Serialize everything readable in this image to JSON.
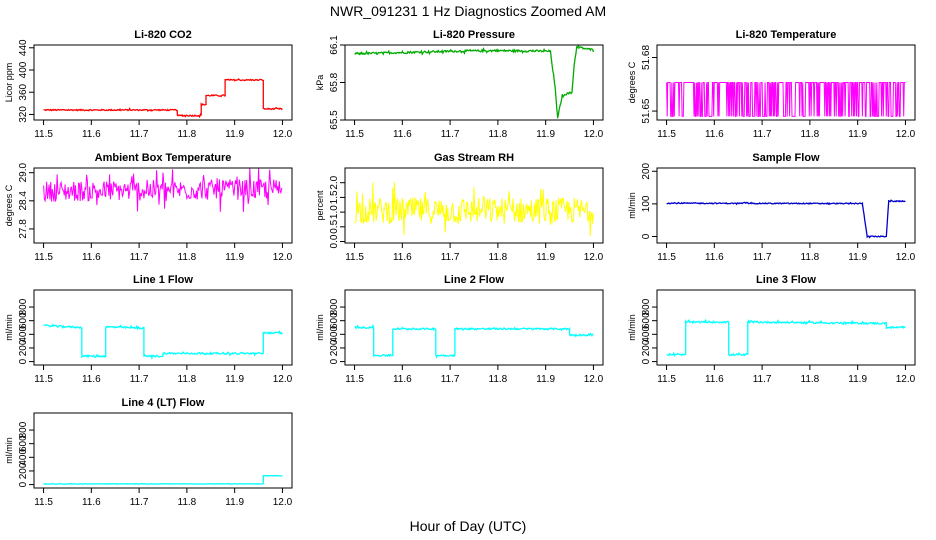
{
  "figure": {
    "title": "NWR_091231  1 Hz Diagnostics Zoomed AM",
    "xlabel": "Hour of Day (UTC)"
  },
  "chart_data": [
    {
      "type": "line",
      "title": "Li-820 CO2",
      "ylabel": "Licor ppm",
      "color": "#ff0000",
      "xlim": [
        11.48,
        12.02
      ],
      "ylim": [
        310,
        445
      ],
      "xticks": [
        "11.5",
        "11.6",
        "11.7",
        "11.8",
        "11.9",
        "12.0"
      ],
      "yticks": [
        "320",
        "360",
        "400",
        "440"
      ],
      "noise": 1.2,
      "series": [
        {
          "x": [
            11.5,
            11.78,
            11.78,
            11.83,
            11.83,
            11.84,
            11.84,
            11.88,
            11.88,
            11.96,
            11.96,
            12.0
          ],
          "values": [
            328,
            328,
            318,
            318,
            338,
            338,
            354,
            354,
            382,
            382,
            330,
            330
          ]
        }
      ]
    },
    {
      "type": "line",
      "title": "Li-820 Pressure",
      "ylabel": "kPa",
      "color": "#00aa00",
      "xlim": [
        11.48,
        12.02
      ],
      "ylim": [
        65.5,
        66.1
      ],
      "xticks": [
        "11.5",
        "11.6",
        "11.7",
        "11.8",
        "11.9",
        "12.0"
      ],
      "yticks": [
        "65.5",
        "65.8",
        "66.1"
      ],
      "noise": 0.008,
      "series": [
        {
          "x": [
            11.5,
            11.6,
            11.7,
            11.8,
            11.91,
            11.92,
            11.925,
            11.935,
            11.955,
            11.96,
            11.965,
            11.97,
            12.0
          ],
          "values": [
            66.03,
            66.04,
            66.05,
            66.055,
            66.05,
            65.75,
            65.52,
            65.7,
            65.72,
            65.95,
            66.08,
            66.08,
            66.06
          ]
        }
      ]
    },
    {
      "type": "line",
      "title": "Li-820 Temperature",
      "ylabel": "degrees C",
      "color": "#ff00ff",
      "xlim": [
        11.48,
        12.02
      ],
      "ylim": [
        51.645,
        51.687
      ],
      "xticks": [
        "11.5",
        "11.6",
        "11.7",
        "11.8",
        "11.9",
        "12.0"
      ],
      "yticks": [
        "51.65",
        "51.68"
      ],
      "noise": 0,
      "series": [
        {
          "x": [
            11.5,
            12.0
          ],
          "values": [
            51.666,
            51.666
          ]
        }
      ]
    },
    {
      "type": "line",
      "title": "Ambient Box Temperature",
      "ylabel": "degrees C",
      "color": "#ff00ff",
      "xlim": [
        11.48,
        12.02
      ],
      "ylim": [
        27.5,
        29.1
      ],
      "xticks": [
        "11.5",
        "11.6",
        "11.7",
        "11.8",
        "11.9",
        "12.0"
      ],
      "yticks": [
        "27.8",
        "28.4",
        "29.0"
      ],
      "noise": 0.22,
      "series": [
        {
          "x": [
            11.5,
            12.0
          ],
          "values": [
            28.6,
            28.65
          ]
        }
      ]
    },
    {
      "type": "line",
      "title": "Gas Stream RH",
      "ylabel": "percent",
      "color": "#ffff00",
      "xlim": [
        11.48,
        12.02
      ],
      "ylim": [
        -0.05,
        2.5
      ],
      "xticks": [
        "11.5",
        "11.6",
        "11.7",
        "11.8",
        "11.9",
        "12.0"
      ],
      "yticks": [
        "0.0",
        "0.5",
        "1.0",
        "1.5",
        "2.0"
      ],
      "noise": 0.45,
      "series": [
        {
          "x": [
            11.5,
            12.0
          ],
          "values": [
            1.05,
            1.05
          ]
        }
      ]
    },
    {
      "type": "line",
      "title": "Sample Flow",
      "ylabel": "ml/min",
      "color": "#0000cc",
      "xlim": [
        11.48,
        12.02
      ],
      "ylim": [
        -20,
        210
      ],
      "xticks": [
        "11.5",
        "11.6",
        "11.7",
        "11.8",
        "11.9",
        "12.0"
      ],
      "yticks": [
        "0",
        "100",
        "200"
      ],
      "noise": 1.5,
      "series": [
        {
          "x": [
            11.5,
            11.91,
            11.92,
            11.96,
            11.965,
            12.0
          ],
          "values": [
            102,
            101,
            0,
            0,
            108,
            108
          ]
        }
      ]
    },
    {
      "type": "line",
      "title": "Line 1 Flow",
      "ylabel": "ml/min",
      "color": "#00ffff",
      "xlim": [
        11.48,
        12.02
      ],
      "ylim": [
        -50,
        1050
      ],
      "xticks": [
        "11.5",
        "11.6",
        "11.7",
        "11.8",
        "11.9",
        "12.0"
      ],
      "yticks": [
        "0",
        "200",
        "400",
        "600",
        "800"
      ],
      "noise": 12,
      "series": [
        {
          "x": [
            11.5,
            11.58,
            11.58,
            11.63,
            11.63,
            11.71,
            11.71,
            11.75,
            11.75,
            11.96,
            11.96,
            12.0
          ],
          "values": [
            530,
            500,
            80,
            80,
            510,
            490,
            80,
            80,
            120,
            120,
            420,
            420
          ]
        }
      ]
    },
    {
      "type": "line",
      "title": "Line 2 Flow",
      "ylabel": "ml/min",
      "color": "#00ffff",
      "xlim": [
        11.48,
        12.02
      ],
      "ylim": [
        -50,
        1050
      ],
      "xticks": [
        "11.5",
        "11.6",
        "11.7",
        "11.8",
        "11.9",
        "12.0"
      ],
      "yticks": [
        "0",
        "200",
        "400",
        "600",
        "800"
      ],
      "noise": 12,
      "series": [
        {
          "x": [
            11.5,
            11.54,
            11.54,
            11.58,
            11.58,
            11.67,
            11.67,
            11.71,
            11.71,
            11.95,
            11.95,
            12.0
          ],
          "values": [
            500,
            500,
            90,
            90,
            480,
            480,
            90,
            90,
            480,
            480,
            390,
            390
          ]
        }
      ]
    },
    {
      "type": "line",
      "title": "Line 3 Flow",
      "ylabel": "ml/min",
      "color": "#00ffff",
      "xlim": [
        11.48,
        12.02
      ],
      "ylim": [
        -50,
        1050
      ],
      "xticks": [
        "11.5",
        "11.6",
        "11.7",
        "11.8",
        "11.9",
        "12.0"
      ],
      "yticks": [
        "0",
        "200",
        "400",
        "600",
        "800"
      ],
      "noise": 12,
      "series": [
        {
          "x": [
            11.5,
            11.54,
            11.54,
            11.63,
            11.63,
            11.67,
            11.67,
            11.96,
            11.96,
            12.0
          ],
          "values": [
            100,
            100,
            580,
            580,
            100,
            100,
            580,
            560,
            500,
            500
          ]
        }
      ]
    },
    {
      "type": "line",
      "title": "Line 4 (LT) Flow",
      "ylabel": "ml/min",
      "color": "#00ffff",
      "xlim": [
        11.48,
        12.02
      ],
      "ylim": [
        -50,
        1050
      ],
      "xticks": [
        "11.5",
        "11.6",
        "11.7",
        "11.8",
        "11.9",
        "12.0"
      ],
      "yticks": [
        "0",
        "200",
        "400",
        "600",
        "800"
      ],
      "noise": 3,
      "series": [
        {
          "x": [
            11.5,
            11.96,
            11.96,
            12.0
          ],
          "values": [
            10,
            10,
            130,
            130
          ]
        }
      ]
    }
  ]
}
